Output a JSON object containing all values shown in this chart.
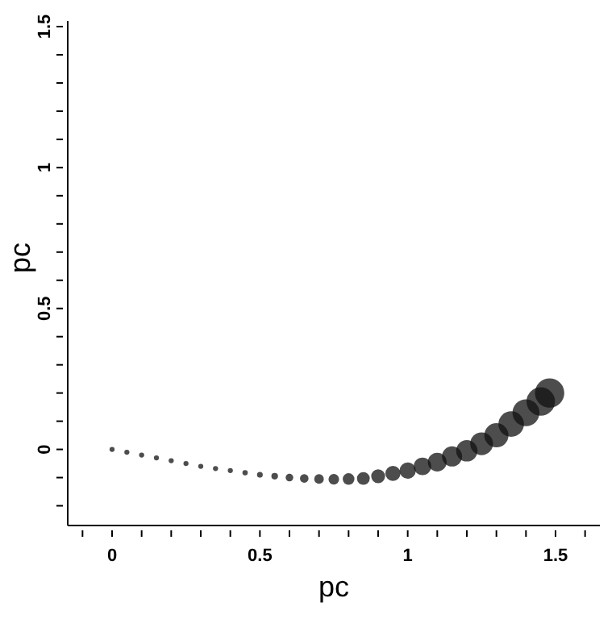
{
  "chart_data": {
    "type": "bubble",
    "xlabel": "pc",
    "ylabel": "pc",
    "x": [
      0,
      0.05,
      0.1,
      0.15,
      0.2,
      0.25,
      0.3,
      0.35,
      0.4,
      0.45,
      0.5,
      0.55,
      0.6,
      0.65,
      0.7,
      0.75,
      0.8,
      0.85,
      0.9,
      0.95,
      1.0,
      1.05,
      1.1,
      1.15,
      1.2,
      1.25,
      1.3,
      1.35,
      1.4,
      1.45,
      1.48
    ],
    "series": [
      {
        "color": "#111111",
        "values": [
          0,
          -0.01,
          -0.02,
          -0.03,
          -0.04,
          -0.05,
          -0.06,
          -0.068,
          -0.075,
          -0.083,
          -0.09,
          -0.095,
          -0.1,
          -0.103,
          -0.105,
          -0.106,
          -0.105,
          -0.103,
          -0.095,
          -0.085,
          -0.075,
          -0.06,
          -0.045,
          -0.025,
          -0.005,
          0.02,
          0.05,
          0.09,
          0.13,
          0.17,
          0.2
        ],
        "sizes": [
          0.03,
          0.03,
          0.03,
          0.03,
          0.03,
          0.03,
          0.03,
          0.03,
          0.03,
          0.033,
          0.039,
          0.051,
          0.067,
          0.085,
          0.106,
          0.13,
          0.158,
          0.19,
          0.225,
          0.264,
          0.309,
          0.357,
          0.41,
          0.469,
          0.533,
          0.603,
          0.678,
          0.759,
          0.846,
          0.941,
          1
        ]
      }
    ],
    "xlim": [
      -0.15,
      1.65
    ],
    "ylim": [
      -0.27,
      1.52
    ],
    "xticks": [
      {
        "value": -0.1,
        "label": null
      },
      0,
      {
        "value": 0.1,
        "label": null
      },
      {
        "value": 0.2,
        "label": null
      },
      {
        "value": 0.3,
        "label": null
      },
      {
        "value": 0.4,
        "label": null
      },
      0.5,
      {
        "value": 0.6,
        "label": null
      },
      {
        "value": 0.7,
        "label": null
      },
      {
        "value": 0.8,
        "label": null
      },
      {
        "value": 0.9,
        "label": null
      },
      1,
      {
        "value": 1.1,
        "label": null
      },
      {
        "value": 1.2,
        "label": null
      },
      {
        "value": 1.3,
        "label": null
      },
      {
        "value": 1.4,
        "label": null
      },
      1.5,
      {
        "value": 1.6,
        "label": null
      }
    ],
    "yticks": [
      {
        "value": -0.2,
        "label": null
      },
      {
        "value": -0.1,
        "label": null
      },
      0,
      {
        "value": 0.1,
        "label": null
      },
      {
        "value": 0.2,
        "label": null
      },
      {
        "value": 0.3,
        "label": null
      },
      {
        "value": 0.4,
        "label": null
      },
      0.5,
      {
        "value": 0.6,
        "label": null
      },
      {
        "value": 0.7,
        "label": null
      },
      {
        "value": 0.8,
        "label": null
      },
      {
        "value": 0.9,
        "label": null
      },
      1,
      {
        "value": 1.1,
        "label": null
      },
      {
        "value": 1.2,
        "label": null
      },
      {
        "value": 1.3,
        "label": null
      },
      {
        "value": 1.4,
        "label": null
      },
      1.5
    ],
    "marker": "circle",
    "grid": false,
    "legend": false
  }
}
